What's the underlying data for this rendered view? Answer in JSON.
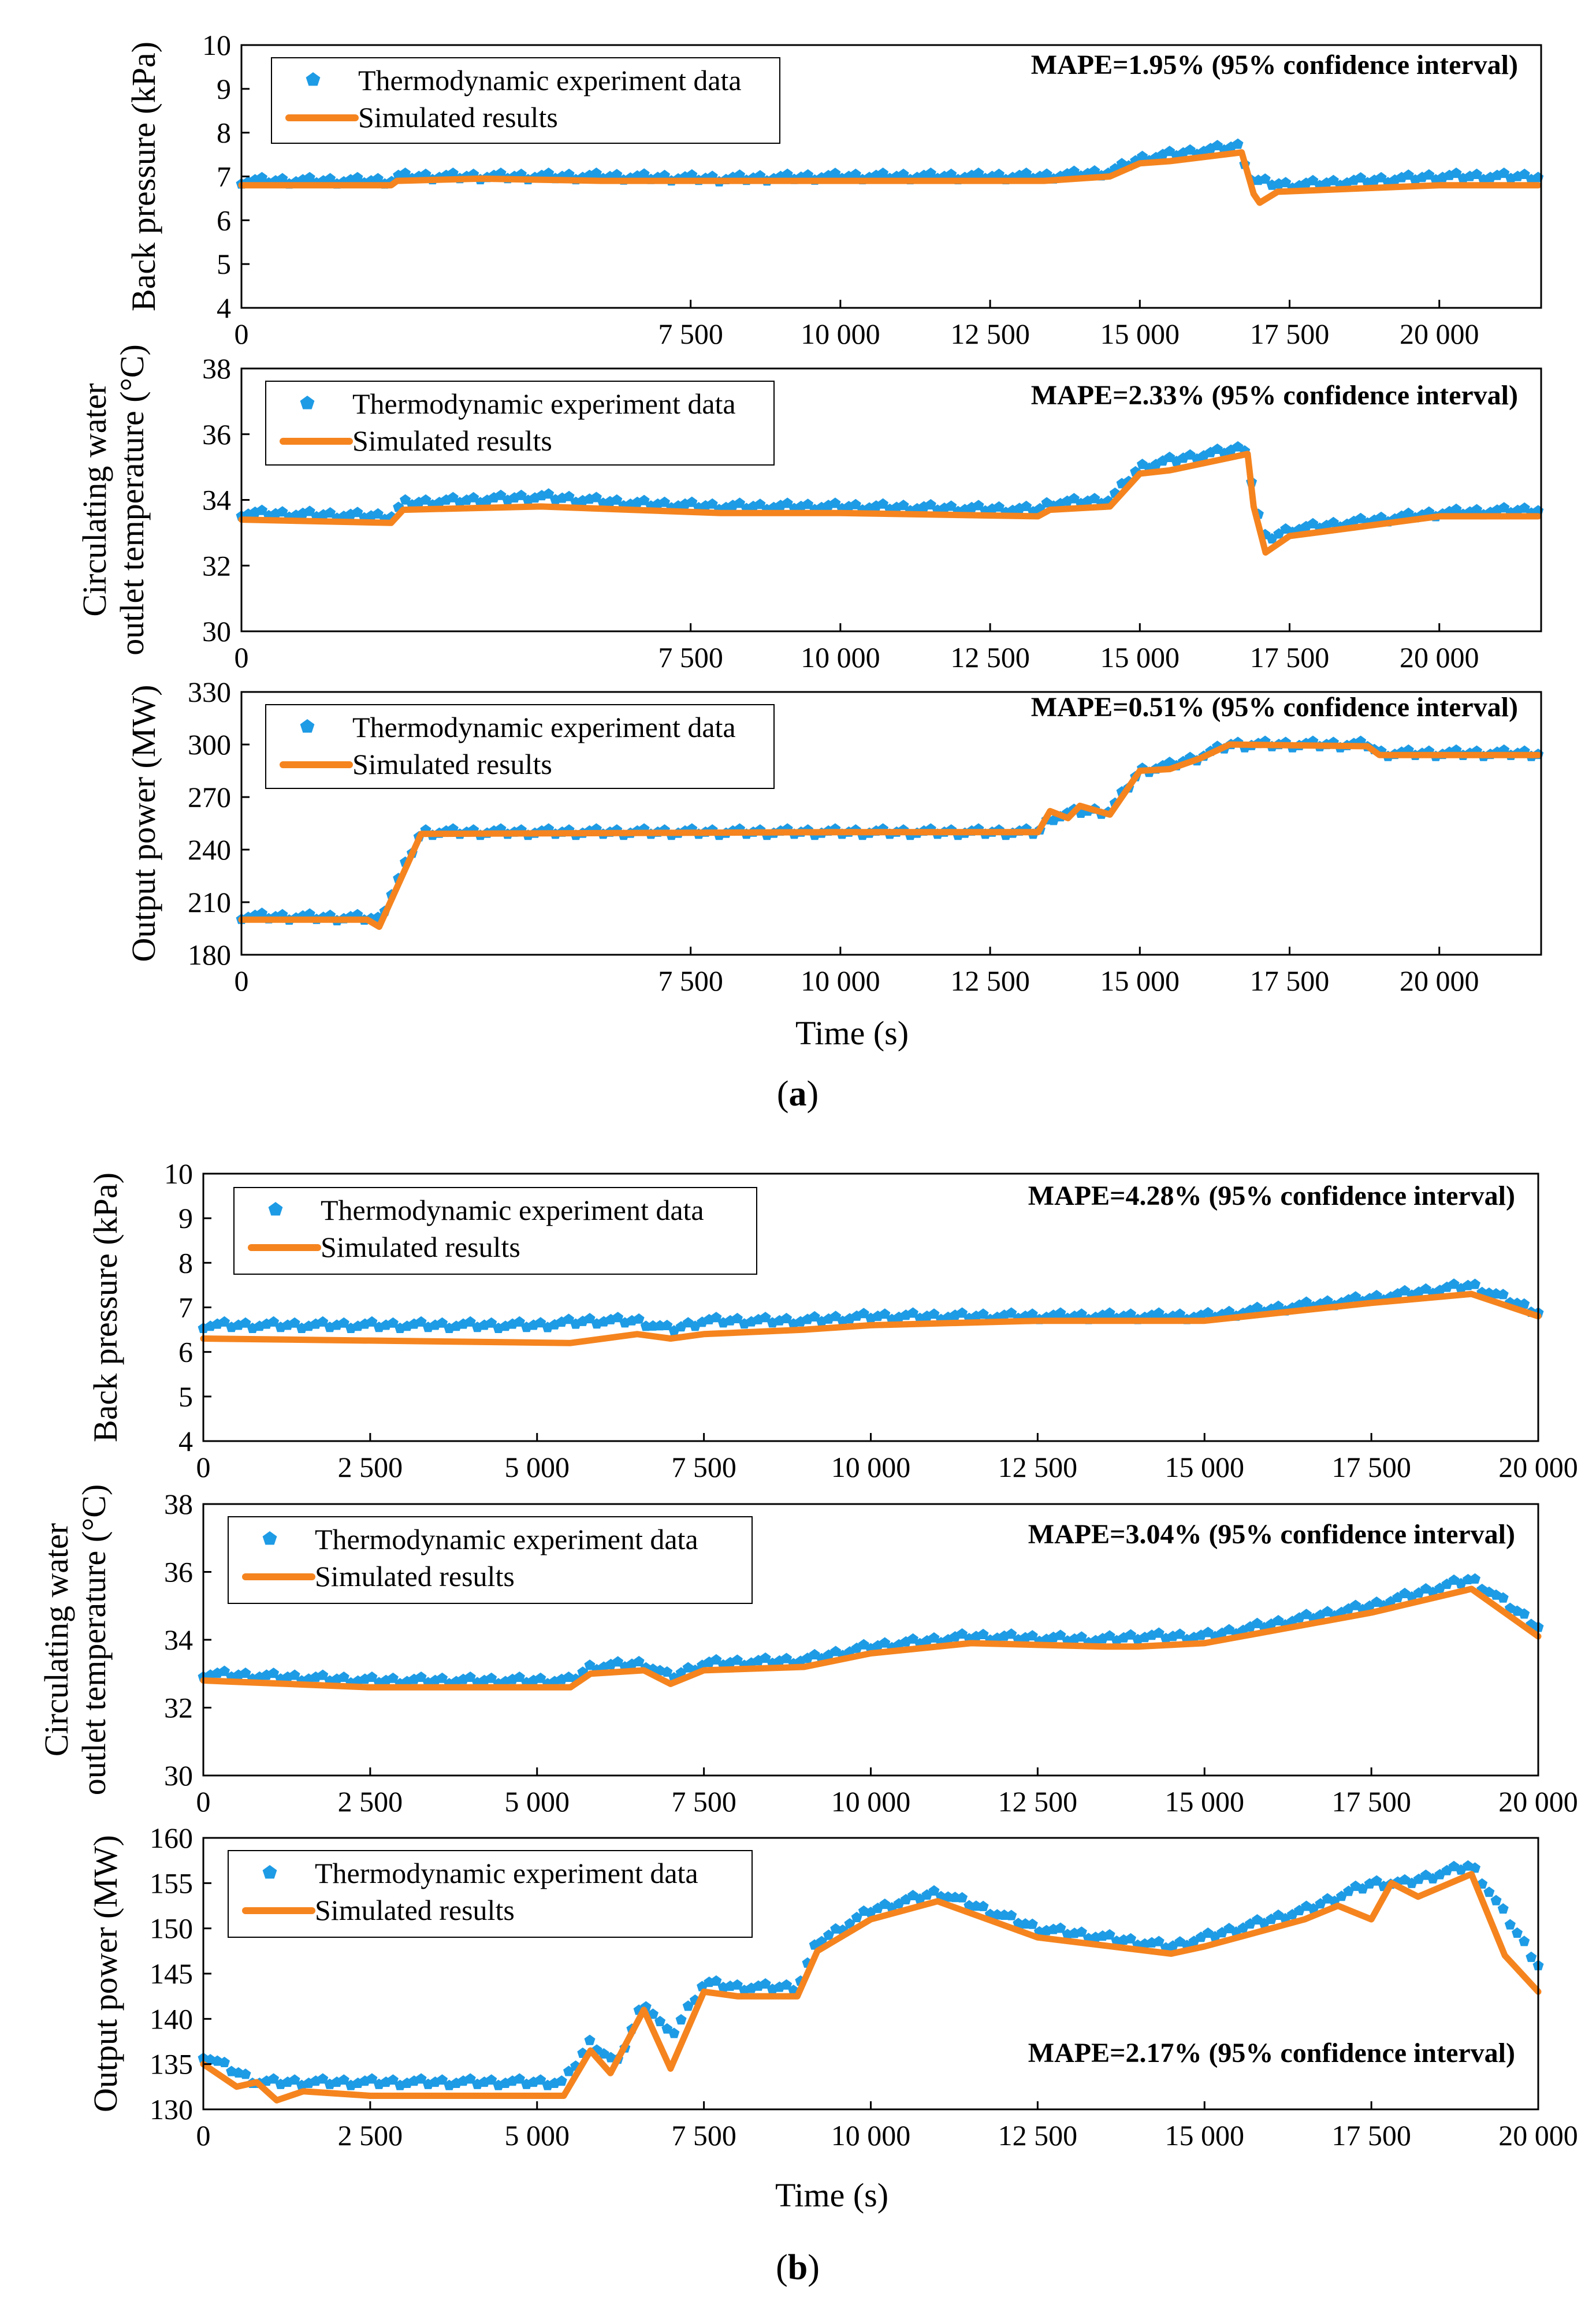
{
  "legend": {
    "experiment": "Thermodynamic experiment data",
    "simulated": "Simulated results"
  },
  "colors": {
    "experiment": "#1E9BE5",
    "simulated": "#F5841F"
  },
  "panels": [
    {
      "caption_letter": "a",
      "caption_text": "(a)",
      "x_label": "Time (s)",
      "xlim": [
        0,
        21700
      ],
      "xticks": [
        0,
        7500,
        10000,
        12500,
        15000,
        17500,
        20000
      ],
      "xtick_labels": [
        "0",
        "7 500",
        "10 000",
        "12 500",
        "15 000",
        "17 500",
        "20 000"
      ]
    },
    {
      "caption_letter": "b",
      "caption_text": "(b)",
      "x_label": "Time (s)",
      "xlim": [
        0,
        20000
      ],
      "xticks": [
        0,
        2500,
        5000,
        7500,
        10000,
        12500,
        15000,
        17500,
        20000
      ],
      "xtick_labels": [
        "0",
        "2 500",
        "5 000",
        "7 500",
        "10 000",
        "12 500",
        "15 000",
        "17 500",
        "20 000"
      ]
    }
  ],
  "chart_data": [
    {
      "type": "line",
      "panel": "a",
      "title": "",
      "xlabel": "",
      "ylabel": "Back pressure (kPa)",
      "ylim": [
        4,
        10
      ],
      "yticks": [
        4,
        5,
        6,
        7,
        8,
        9,
        10
      ],
      "mape": "MAPE=1.95% (95% confidence interval)",
      "mape_position": "top-right",
      "legend_position": "top-left",
      "series": [
        {
          "name": "Thermodynamic experiment data",
          "style": "markers",
          "x": [
            0,
            2500,
            2600,
            4000,
            6000,
            8000,
            10000,
            13400,
            14500,
            15000,
            15500,
            16700,
            16800,
            16900,
            17500,
            20000,
            21650
          ],
          "y": [
            6.9,
            6.9,
            7.0,
            7.0,
            7.0,
            6.95,
            7.0,
            7.0,
            7.1,
            7.4,
            7.5,
            7.7,
            7.0,
            6.9,
            6.8,
            7.0,
            7.0
          ]
        },
        {
          "name": "Simulated results",
          "style": "line",
          "x": [
            0,
            2500,
            2600,
            4000,
            6000,
            8000,
            10000,
            13400,
            14500,
            15000,
            15500,
            16700,
            16900,
            17000,
            17300,
            20000,
            21650
          ],
          "y": [
            6.8,
            6.8,
            6.9,
            6.95,
            6.9,
            6.9,
            6.9,
            6.9,
            7.0,
            7.3,
            7.35,
            7.55,
            6.6,
            6.4,
            6.65,
            6.8,
            6.8
          ]
        }
      ]
    },
    {
      "type": "line",
      "panel": "a",
      "title": "",
      "xlabel": "",
      "ylabel": [
        "Circulating water",
        "outlet temperature (°C)"
      ],
      "ylim": [
        30,
        38
      ],
      "yticks": [
        30,
        32,
        34,
        36,
        38
      ],
      "mape": "MAPE=2.33% (95% confidence interval)",
      "mape_position": "top-right",
      "legend_position": "top-left",
      "series": [
        {
          "name": "Thermodynamic experiment data",
          "style": "markers",
          "x": [
            0,
            2500,
            2700,
            5000,
            6500,
            8000,
            10000,
            13300,
            13500,
            14500,
            15000,
            15500,
            16800,
            16900,
            17100,
            17500,
            20000,
            21650
          ],
          "y": [
            33.6,
            33.5,
            33.9,
            34.1,
            33.9,
            33.8,
            33.8,
            33.7,
            33.9,
            34.0,
            35.0,
            35.2,
            35.6,
            34.0,
            32.8,
            33.1,
            33.6,
            33.7
          ]
        },
        {
          "name": "Simulated results",
          "style": "line",
          "x": [
            0,
            2500,
            2700,
            5000,
            6500,
            8000,
            10000,
            13300,
            13500,
            14500,
            15000,
            15500,
            16800,
            16900,
            17100,
            17500,
            20000,
            21650
          ],
          "y": [
            33.4,
            33.3,
            33.7,
            33.8,
            33.7,
            33.6,
            33.6,
            33.5,
            33.7,
            33.8,
            34.8,
            34.9,
            35.4,
            33.8,
            32.4,
            32.9,
            33.5,
            33.5
          ]
        }
      ]
    },
    {
      "type": "line",
      "panel": "a",
      "title": "",
      "xlabel": "Time (s)",
      "ylabel": "Output power (MW)",
      "ylim": [
        180,
        330
      ],
      "yticks": [
        180,
        210,
        240,
        270,
        300,
        330
      ],
      "mape": "MAPE=0.51% (95% confidence interval)",
      "mape_position": "top-right",
      "legend_position": "top-left",
      "series": [
        {
          "name": "Thermodynamic experiment data",
          "style": "markers",
          "x": [
            0,
            2100,
            2300,
            3000,
            10000,
            13300,
            13500,
            14000,
            14500,
            15000,
            15500,
            16000,
            16500,
            18800,
            19000,
            21650
          ],
          "y": [
            202,
            201,
            200,
            250,
            250,
            250,
            258,
            262,
            262,
            285,
            288,
            293,
            300,
            300,
            295,
            295
          ]
        },
        {
          "name": "Simulated results",
          "style": "line",
          "x": [
            0,
            2100,
            2300,
            3000,
            10000,
            13300,
            13500,
            13800,
            14000,
            14500,
            15000,
            15500,
            16000,
            16500,
            18800,
            19000,
            21650
          ],
          "y": [
            200,
            200,
            196,
            249,
            250,
            250,
            262,
            258,
            265,
            260,
            285,
            286,
            292,
            300,
            299,
            294,
            294
          ]
        }
      ]
    },
    {
      "type": "line",
      "panel": "b",
      "title": "",
      "xlabel": "",
      "ylabel": "Back pressure (kPa)",
      "ylim": [
        4,
        10
      ],
      "yticks": [
        4,
        5,
        6,
        7,
        8,
        9,
        10
      ],
      "mape": "MAPE=4.28% (95% confidence interval)",
      "mape_position": "top-right",
      "legend_position": "top-left",
      "series": [
        {
          "name": "Thermodynamic experiment data",
          "style": "markers",
          "x": [
            0,
            5000,
            5800,
            6500,
            7000,
            7500,
            9000,
            10000,
            12500,
            15000,
            17500,
            19000,
            20000
          ],
          "y": [
            6.6,
            6.6,
            6.7,
            6.7,
            6.5,
            6.7,
            6.7,
            6.8,
            6.8,
            6.8,
            7.2,
            7.5,
            6.9
          ]
        },
        {
          "name": "Simulated results",
          "style": "line",
          "x": [
            0,
            5500,
            6500,
            7000,
            7500,
            9000,
            10000,
            12500,
            15000,
            17500,
            19000,
            20000
          ],
          "y": [
            6.3,
            6.2,
            6.4,
            6.3,
            6.4,
            6.5,
            6.6,
            6.7,
            6.7,
            7.1,
            7.3,
            6.8
          ]
        }
      ]
    },
    {
      "type": "line",
      "panel": "b",
      "title": "",
      "xlabel": "",
      "ylabel": [
        "Circulating water",
        "outlet temperature (°C)"
      ],
      "ylim": [
        30,
        38
      ],
      "yticks": [
        30,
        32,
        34,
        36,
        38
      ],
      "mape": "MAPE=3.04% (95% confidence interval)",
      "mape_position": "top-right",
      "legend_position": "top-left",
      "series": [
        {
          "name": "Thermodynamic experiment data",
          "style": "markers",
          "x": [
            0,
            2500,
            5500,
            5800,
            6600,
            7000,
            7500,
            9000,
            10000,
            11500,
            13500,
            14000,
            15000,
            17500,
            19000,
            20000
          ],
          "y": [
            33.0,
            32.8,
            32.8,
            33.2,
            33.3,
            32.9,
            33.3,
            33.4,
            33.8,
            34.1,
            34.0,
            34.1,
            34.1,
            35.0,
            35.8,
            34.4
          ]
        },
        {
          "name": "Simulated results",
          "style": "line",
          "x": [
            0,
            2500,
            5500,
            5800,
            6600,
            7000,
            7500,
            9000,
            10000,
            11500,
            13500,
            14000,
            15000,
            17500,
            19000,
            20000
          ],
          "y": [
            32.8,
            32.6,
            32.6,
            33.0,
            33.1,
            32.7,
            33.1,
            33.2,
            33.6,
            33.9,
            33.8,
            33.8,
            33.9,
            34.8,
            35.5,
            34.1
          ]
        }
      ]
    },
    {
      "type": "line",
      "panel": "b",
      "title": "",
      "xlabel": "Time (s)",
      "ylabel": "Output power (MW)",
      "ylim": [
        130,
        160
      ],
      "yticks": [
        130,
        135,
        140,
        145,
        150,
        155,
        160
      ],
      "mape": "MAPE=2.17% (95% confidence interval)",
      "mape_position": "bottom-right",
      "legend_position": "top-left",
      "series": [
        {
          "name": "Thermodynamic experiment data",
          "style": "markers",
          "x": [
            0,
            800,
            1500,
            5400,
            5800,
            6200,
            6600,
            7000,
            7500,
            8000,
            8900,
            9200,
            10000,
            11000,
            12500,
            14500,
            15000,
            16500,
            17500,
            18000,
            19000,
            20000
          ],
          "y": [
            136,
            133,
            133,
            133,
            137.5,
            135,
            142,
            138,
            144,
            143.5,
            143.5,
            148.5,
            152,
            154,
            150,
            148,
            149,
            152,
            155,
            155,
            157,
            146
          ]
        },
        {
          "name": "Simulated results",
          "style": "line",
          "x": [
            0,
            500,
            800,
            1100,
            1500,
            2500,
            5400,
            5800,
            6100,
            6600,
            7000,
            7500,
            8000,
            8900,
            9200,
            10000,
            11000,
            12500,
            14500,
            15000,
            16500,
            17000,
            17500,
            17800,
            18200,
            19000,
            19500,
            20000
          ],
          "y": [
            135,
            132.5,
            133,
            131,
            132,
            131.5,
            131.5,
            136.5,
            134,
            141,
            134.5,
            143,
            142.5,
            142.5,
            147.5,
            151,
            153,
            149,
            147.2,
            148,
            151,
            152.5,
            151,
            155,
            153.5,
            156,
            147,
            143
          ]
        }
      ]
    }
  ]
}
